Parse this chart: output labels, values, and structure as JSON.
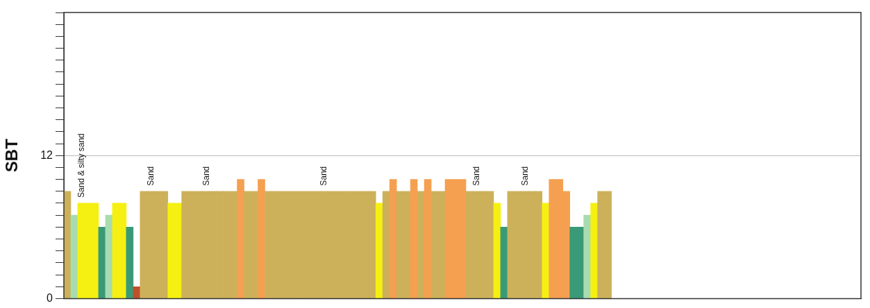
{
  "chart_data": {
    "type": "bar",
    "ylabel": "SBT",
    "categories": [
      null,
      null,
      null,
      null,
      null,
      null,
      null,
      null,
      null,
      null,
      null,
      null,
      null,
      null,
      null,
      null,
      null,
      null,
      null,
      null,
      null,
      null,
      null,
      null,
      null,
      null,
      null,
      null,
      null,
      null,
      null,
      null,
      null,
      null,
      null,
      null,
      null,
      null,
      null,
      null,
      null,
      null,
      null,
      null,
      null,
      null,
      null,
      null,
      null,
      null,
      null,
      null,
      null,
      null,
      null,
      null,
      null,
      null,
      null,
      null,
      null,
      null,
      null,
      null,
      null,
      null,
      null,
      null,
      null,
      null,
      null,
      null,
      null,
      null,
      null,
      null,
      null,
      null,
      null,
      null,
      null,
      null,
      null,
      null,
      null,
      null,
      null,
      null,
      null,
      null,
      null,
      null,
      null,
      null,
      null,
      null,
      null,
      null,
      null,
      null,
      null,
      null,
      null,
      null,
      null,
      null,
      null,
      null,
      null,
      null,
      null,
      null,
      null,
      null,
      null
    ],
    "values": [
      9,
      7,
      8,
      8,
      8,
      6,
      7,
      8,
      8,
      6,
      1,
      9,
      9,
      9,
      9,
      8,
      8,
      9,
      9,
      9,
      9,
      9,
      9,
      9,
      9,
      10,
      9,
      9,
      10,
      9,
      9,
      9,
      9,
      9,
      9,
      9,
      9,
      9,
      9,
      9,
      9,
      9,
      9,
      9,
      9,
      8,
      9,
      10,
      9,
      9,
      10,
      9,
      10,
      9,
      9,
      10,
      10,
      10,
      9,
      9,
      9,
      9,
      8,
      6,
      9,
      9,
      9,
      9,
      9,
      8,
      10,
      10,
      9,
      6,
      6,
      7,
      8,
      9,
      9,
      null,
      null,
      null,
      null,
      null,
      null,
      null,
      null,
      null,
      null,
      null,
      null,
      null,
      null,
      null,
      null,
      null,
      null,
      null,
      null,
      null,
      null,
      null,
      null,
      null,
      null,
      null,
      null,
      null,
      null,
      null,
      null,
      null,
      null,
      null,
      null
    ],
    "colors": [
      "#cdb05a",
      "#a8dcb0",
      "#f5f011",
      "#f5f011",
      "#f5f011",
      "#3a9a78",
      "#a8dcb0",
      "#f5f011",
      "#f5f011",
      "#3a9a78",
      "#c0502a",
      "#cdb05a",
      "#cdb05a",
      "#cdb05a",
      "#cdb05a",
      "#f5f011",
      "#f5f011",
      "#cdb05a",
      "#cdb05a",
      "#cdb05a",
      "#cdb05a",
      "#cdb05a",
      "#cdb05a",
      "#cdb05a",
      "#cdb05a",
      "#f5a050",
      "#cdb05a",
      "#cdb05a",
      "#f5a050",
      "#cdb05a",
      "#cdb05a",
      "#cdb05a",
      "#cdb05a",
      "#cdb05a",
      "#cdb05a",
      "#cdb05a",
      "#cdb05a",
      "#cdb05a",
      "#cdb05a",
      "#cdb05a",
      "#cdb05a",
      "#cdb05a",
      "#cdb05a",
      "#cdb05a",
      "#cdb05a",
      "#f5f011",
      "#cdb05a",
      "#f5a050",
      "#cdb05a",
      "#cdb05a",
      "#f5a050",
      "#cdb05a",
      "#f5a050",
      "#cdb05a",
      "#cdb05a",
      "#f5a050",
      "#f5a050",
      "#f5a050",
      "#cdb05a",
      "#cdb05a",
      "#cdb05a",
      "#cdb05a",
      "#f5f011",
      "#3a9a78",
      "#cdb05a",
      "#cdb05a",
      "#cdb05a",
      "#cdb05a",
      "#cdb05a",
      "#f5f011",
      "#f5a050",
      "#f5a050",
      "#f5a050",
      "#3a9a78",
      "#3a9a78",
      "#a8dcb0",
      "#f5f011",
      "#cdb05a",
      "#cdb05a",
      null,
      null,
      null,
      null,
      null,
      null,
      null,
      null,
      null,
      null,
      null,
      null,
      null,
      null,
      null,
      null,
      null,
      null,
      null,
      null,
      null,
      null,
      null,
      null,
      null,
      null,
      null,
      null,
      null,
      null,
      null,
      null,
      null,
      null,
      null,
      null
    ],
    "value_labels": [
      null,
      null,
      "Sand & silty sand",
      null,
      null,
      null,
      null,
      null,
      null,
      null,
      null,
      null,
      "Sand",
      null,
      null,
      null,
      null,
      null,
      null,
      null,
      "Sand",
      null,
      null,
      null,
      null,
      null,
      null,
      null,
      null,
      null,
      null,
      null,
      null,
      null,
      null,
      null,
      null,
      "Sand",
      null,
      null,
      null,
      null,
      null,
      null,
      null,
      null,
      null,
      null,
      null,
      null,
      null,
      null,
      null,
      null,
      null,
      null,
      null,
      null,
      null,
      "Sand",
      null,
      null,
      null,
      null,
      null,
      null,
      "Sand",
      null,
      null,
      null,
      null,
      null,
      null,
      null,
      null,
      null,
      null,
      null,
      null,
      null,
      null,
      null,
      null,
      null,
      null,
      null,
      null,
      null,
      null,
      null,
      null,
      null,
      null,
      null,
      null,
      null,
      null,
      null,
      null,
      null,
      null,
      null,
      null,
      null,
      null,
      null,
      null,
      null,
      null,
      null,
      null,
      null,
      null,
      null,
      null
    ],
    "ylim": [
      0,
      24
    ],
    "yticks": [
      0,
      {
        "value": 1,
        "label": null
      },
      {
        "value": 2,
        "label": null
      },
      {
        "value": 3,
        "label": null
      },
      {
        "value": 4,
        "label": null
      },
      {
        "value": 5,
        "label": null
      },
      {
        "value": 6,
        "label": null
      },
      {
        "value": 7,
        "label": null
      },
      {
        "value": 8,
        "label": null
      },
      {
        "value": 9,
        "label": null
      },
      {
        "value": 10,
        "label": null
      },
      {
        "value": 11,
        "label": null
      },
      12,
      {
        "value": 13,
        "label": null
      },
      {
        "value": 14,
        "label": null
      },
      {
        "value": 15,
        "label": null
      },
      {
        "value": 16,
        "label": null
      },
      {
        "value": 17,
        "label": null
      },
      {
        "value": 18,
        "label": null
      },
      {
        "value": 19,
        "label": null
      },
      {
        "value": 20,
        "label": null
      },
      {
        "value": 21,
        "label": null
      },
      {
        "value": 22,
        "label": null
      },
      {
        "value": 23,
        "label": null
      },
      {
        "value": 24,
        "label": null
      }
    ],
    "grid": "y",
    "legend": false,
    "tick_labels": "y"
  }
}
